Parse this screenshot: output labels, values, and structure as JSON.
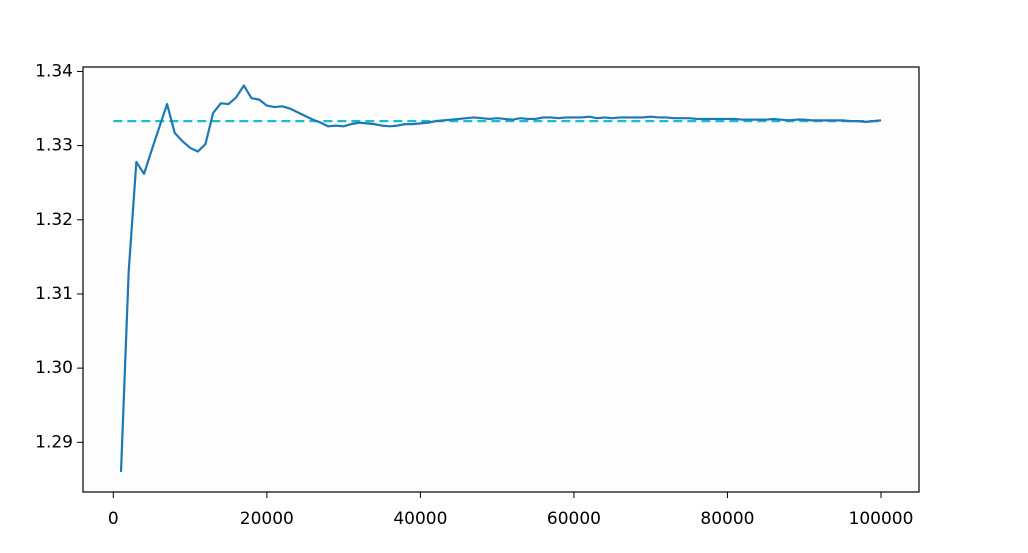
{
  "chart_data": {
    "type": "line",
    "x": [
      1000,
      2000,
      3000,
      4000,
      5000,
      6000,
      7000,
      8000,
      9000,
      10000,
      11000,
      12000,
      13000,
      14000,
      15000,
      16000,
      17000,
      18000,
      19000,
      20000,
      21000,
      22000,
      23000,
      24000,
      25000,
      26000,
      27000,
      28000,
      29000,
      30000,
      31000,
      32000,
      33000,
      34000,
      35000,
      36000,
      37000,
      38000,
      39000,
      40000,
      41000,
      42000,
      43000,
      44000,
      45000,
      46000,
      47000,
      48000,
      49000,
      50000,
      51000,
      52000,
      53000,
      54000,
      55000,
      56000,
      57000,
      58000,
      59000,
      60000,
      61000,
      62000,
      63000,
      64000,
      65000,
      66000,
      67000,
      68000,
      69000,
      70000,
      71000,
      72000,
      73000,
      74000,
      75000,
      76000,
      77000,
      78000,
      79000,
      80000,
      81000,
      82000,
      83000,
      84000,
      85000,
      86000,
      87000,
      88000,
      89000,
      90000,
      91000,
      92000,
      93000,
      94000,
      95000,
      96000,
      97000,
      98000,
      99000,
      100000
    ],
    "series": [
      {
        "color": "#1f77b4",
        "values": [
          1.286,
          1.313,
          1.3278,
          1.3262,
          1.3294,
          1.3325,
          1.3356,
          1.3317,
          1.3306,
          1.3297,
          1.3292,
          1.3302,
          1.3344,
          1.3357,
          1.3356,
          1.3365,
          1.3381,
          1.3364,
          1.3362,
          1.3354,
          1.3352,
          1.3353,
          1.335,
          1.3345,
          1.334,
          1.3335,
          1.3331,
          1.3326,
          1.3327,
          1.3326,
          1.3329,
          1.3331,
          1.333,
          1.3329,
          1.3327,
          1.3326,
          1.3327,
          1.3329,
          1.3329,
          1.333,
          1.3331,
          1.3333,
          1.3334,
          1.3335,
          1.3336,
          1.3337,
          1.3338,
          1.3337,
          1.3336,
          1.3337,
          1.3336,
          1.3335,
          1.3337,
          1.3336,
          1.3336,
          1.3338,
          1.3338,
          1.3337,
          1.3338,
          1.3338,
          1.3338,
          1.3339,
          1.3337,
          1.3338,
          1.3337,
          1.3338,
          1.3338,
          1.3338,
          1.3338,
          1.3339,
          1.3338,
          1.3338,
          1.3337,
          1.3337,
          1.3337,
          1.3336,
          1.3336,
          1.3336,
          1.3336,
          1.3336,
          1.3336,
          1.3335,
          1.3335,
          1.3335,
          1.3335,
          1.3336,
          1.3335,
          1.3334,
          1.3335,
          1.3335,
          1.3334,
          1.3334,
          1.3334,
          1.3334,
          1.3334,
          1.3333,
          1.3333,
          1.3332,
          1.3333,
          1.3334
        ]
      }
    ],
    "reference_line": {
      "y": 1.3333,
      "x": [
        0,
        100000
      ],
      "color": "#17becf",
      "style": "dashed"
    },
    "xlim": [
      -3950,
      104950
    ],
    "ylim": [
      1.2833,
      1.3406
    ],
    "xticks": [
      0,
      20000,
      40000,
      60000,
      80000,
      100000
    ],
    "yticks": [
      1.29,
      {
        "value": 1.3,
        "label": "1.30"
      },
      1.31,
      1.32,
      1.33,
      1.34
    ]
  }
}
